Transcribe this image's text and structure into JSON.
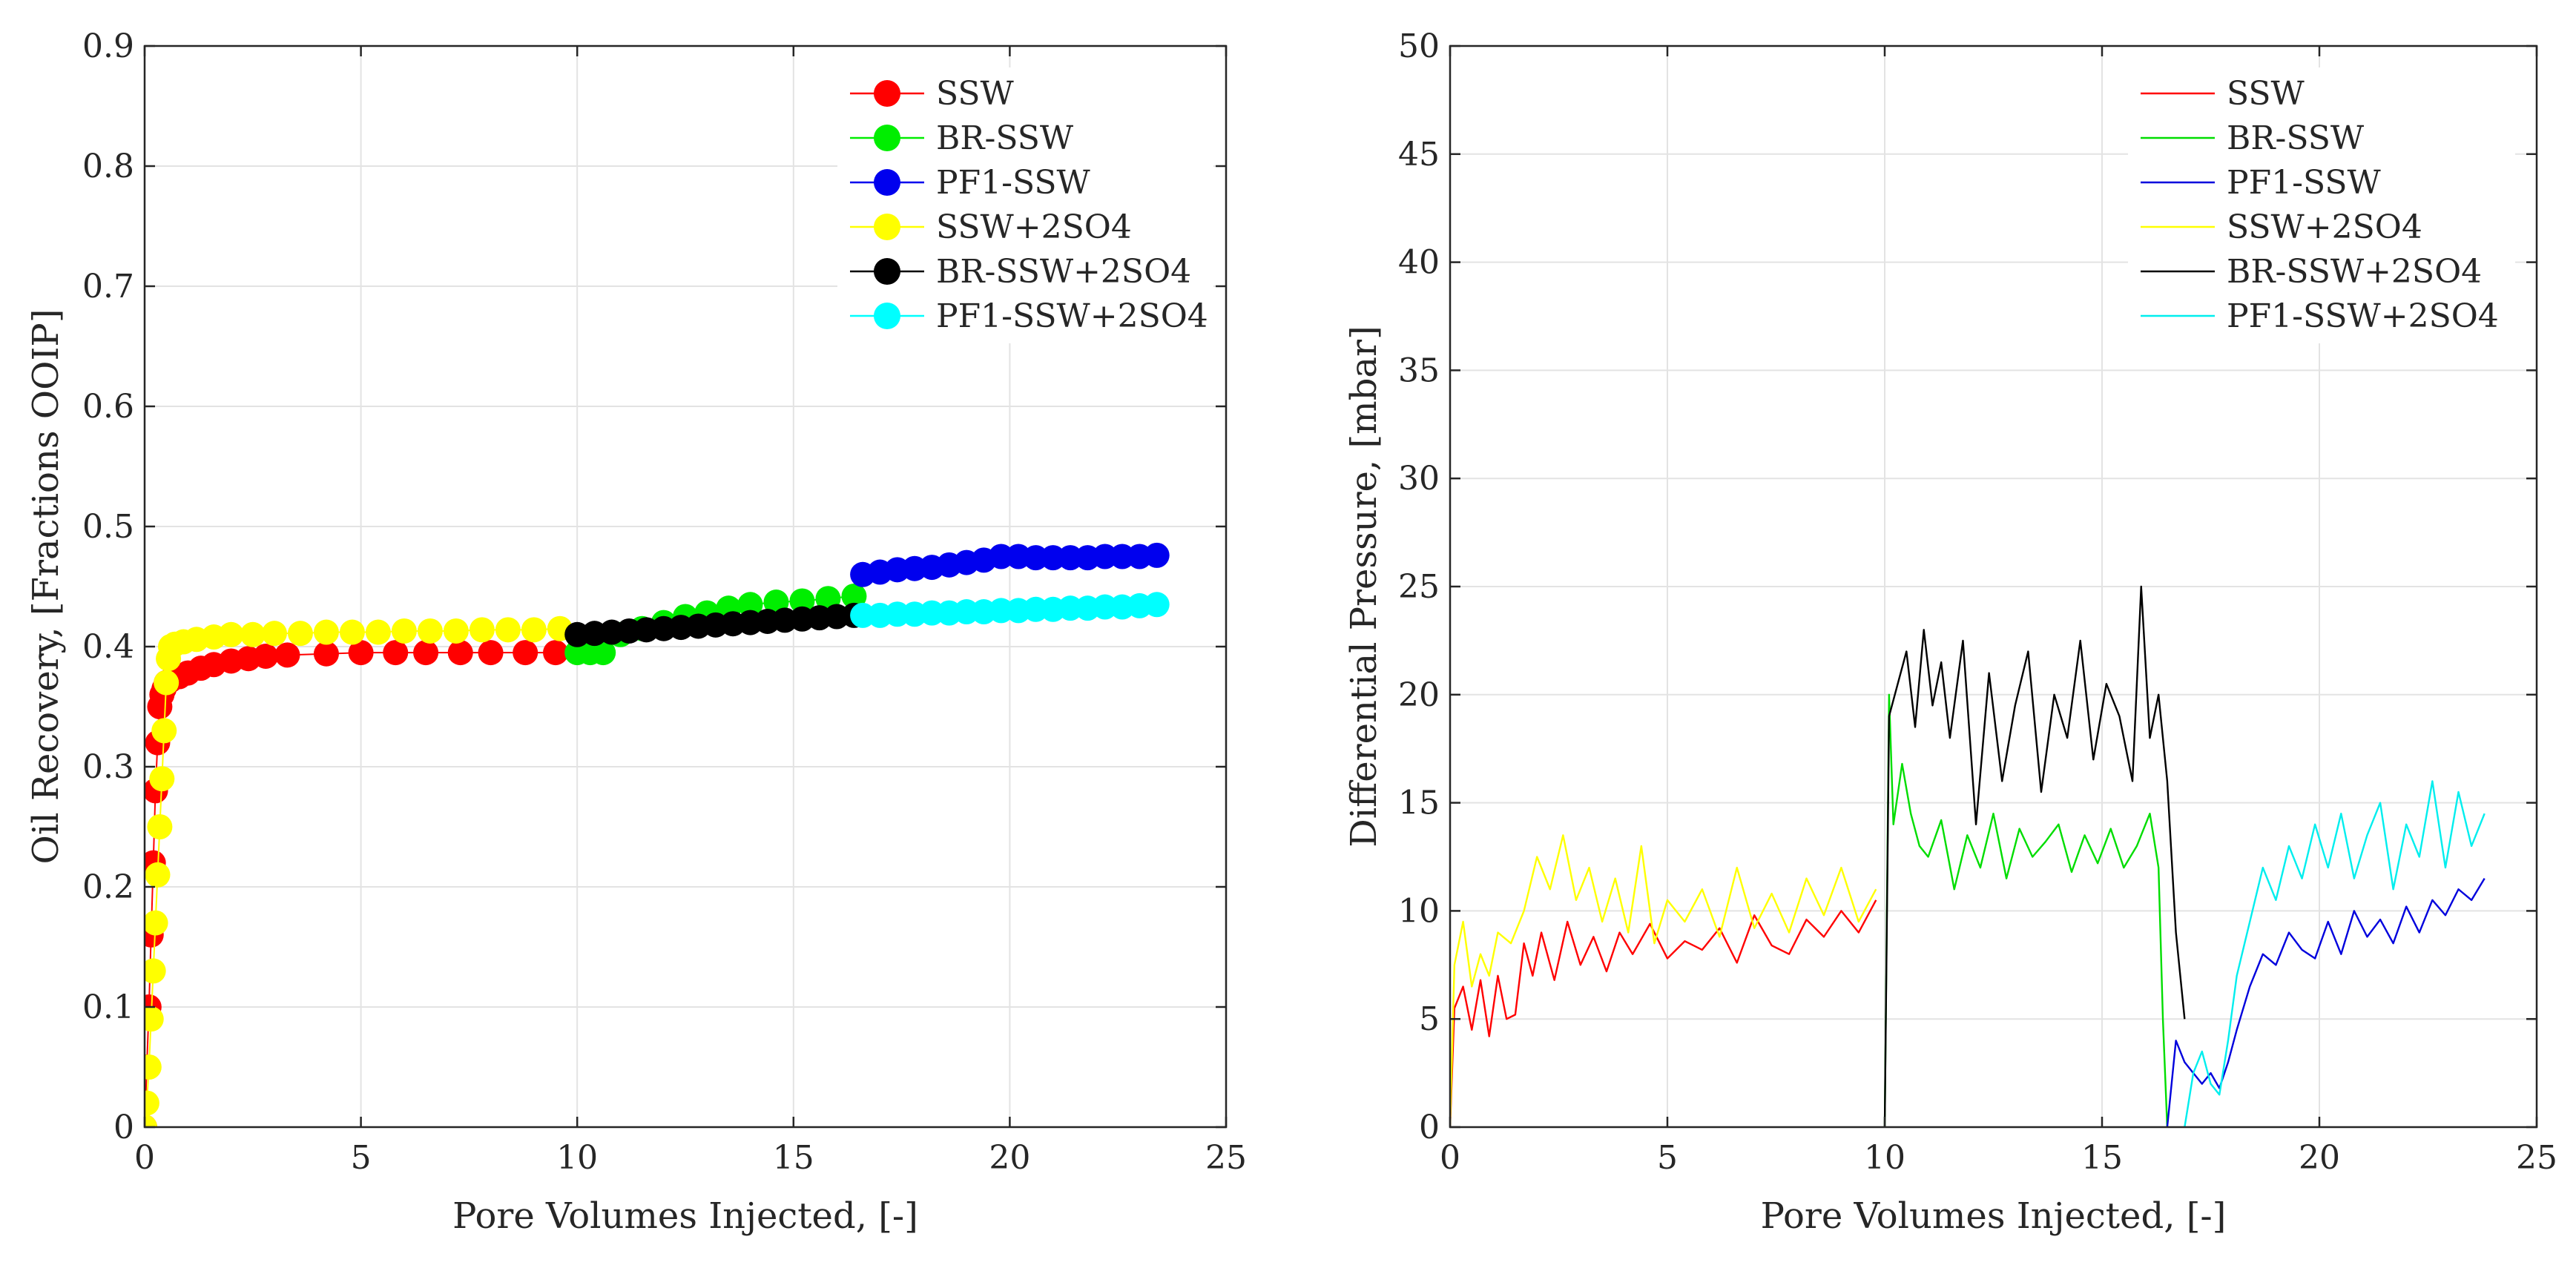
{
  "chart_data": [
    {
      "type": "scatter",
      "title": "",
      "xlabel": "Pore Volumes Injected, [-]",
      "ylabel": "Oil Recovery, [Fractions OOIP]",
      "xlim": [
        0,
        25
      ],
      "ylim": [
        0,
        0.9
      ],
      "xticks": [
        0,
        5,
        10,
        15,
        20,
        25
      ],
      "yticks": [
        0,
        0.1,
        0.2,
        0.3,
        0.4,
        0.5,
        0.6,
        0.7,
        0.8,
        0.9
      ],
      "xtick_labels": [
        "0",
        "5",
        "10",
        "15",
        "20",
        "25"
      ],
      "ytick_labels": [
        "0",
        "0.1",
        "0.2",
        "0.3",
        "0.4",
        "0.5",
        "0.6",
        "0.7",
        "0.8",
        "0.9"
      ],
      "grid": true,
      "legend_position": "top-right",
      "series": [
        {
          "name": "SSW",
          "color": "#ff0000",
          "x": [
            0.0,
            0.05,
            0.1,
            0.15,
            0.2,
            0.25,
            0.3,
            0.35,
            0.4,
            0.45,
            0.5,
            0.6,
            0.8,
            1.0,
            1.3,
            1.6,
            2.0,
            2.4,
            2.8,
            3.3,
            4.2,
            5.0,
            5.8,
            6.5,
            7.3,
            8.0,
            8.8,
            9.5
          ],
          "y": [
            0.0,
            0.05,
            0.1,
            0.16,
            0.22,
            0.28,
            0.32,
            0.35,
            0.36,
            0.365,
            0.37,
            0.372,
            0.375,
            0.378,
            0.382,
            0.385,
            0.388,
            0.39,
            0.392,
            0.393,
            0.394,
            0.395,
            0.395,
            0.395,
            0.395,
            0.395,
            0.395,
            0.395
          ]
        },
        {
          "name": "BR-SSW",
          "color": "#00ee00",
          "x": [
            10.0,
            10.3,
            10.6,
            11.0,
            11.5,
            12.0,
            12.5,
            13.0,
            13.5,
            14.0,
            14.6,
            15.2,
            15.8,
            16.4
          ],
          "y": [
            0.395,
            0.395,
            0.395,
            0.41,
            0.415,
            0.42,
            0.425,
            0.428,
            0.432,
            0.435,
            0.437,
            0.438,
            0.44,
            0.442
          ]
        },
        {
          "name": "PF1-SSW",
          "color": "#0000ee",
          "x": [
            16.6,
            17.0,
            17.4,
            17.8,
            18.2,
            18.6,
            19.0,
            19.4,
            19.8,
            20.2,
            20.6,
            21.0,
            21.4,
            21.8,
            22.2,
            22.6,
            23.0,
            23.4
          ],
          "y": [
            0.46,
            0.462,
            0.464,
            0.465,
            0.466,
            0.468,
            0.47,
            0.472,
            0.475,
            0.475,
            0.474,
            0.474,
            0.474,
            0.474,
            0.475,
            0.475,
            0.475,
            0.476
          ]
        },
        {
          "name": "SSW+2SO4",
          "color": "#ffff00",
          "x": [
            0.0,
            0.05,
            0.1,
            0.15,
            0.2,
            0.25,
            0.3,
            0.35,
            0.4,
            0.45,
            0.5,
            0.55,
            0.6,
            0.7,
            0.9,
            1.2,
            1.6,
            2.0,
            2.5,
            3.0,
            3.6,
            4.2,
            4.8,
            5.4,
            6.0,
            6.6,
            7.2,
            7.8,
            8.4,
            9.0,
            9.6
          ],
          "y": [
            0.0,
            0.02,
            0.05,
            0.09,
            0.13,
            0.17,
            0.21,
            0.25,
            0.29,
            0.33,
            0.37,
            0.39,
            0.4,
            0.402,
            0.404,
            0.406,
            0.408,
            0.41,
            0.41,
            0.411,
            0.411,
            0.412,
            0.412,
            0.412,
            0.413,
            0.413,
            0.413,
            0.414,
            0.414,
            0.414,
            0.415
          ]
        },
        {
          "name": "BR-SSW+2SO4",
          "color": "#000000",
          "x": [
            10.0,
            10.4,
            10.8,
            11.2,
            11.6,
            12.0,
            12.4,
            12.8,
            13.2,
            13.6,
            14.0,
            14.4,
            14.8,
            15.2,
            15.6,
            16.0,
            16.4
          ],
          "y": [
            0.41,
            0.411,
            0.412,
            0.413,
            0.414,
            0.415,
            0.416,
            0.417,
            0.418,
            0.419,
            0.42,
            0.421,
            0.422,
            0.423,
            0.424,
            0.425,
            0.426
          ]
        },
        {
          "name": "PF1-SSW+2SO4",
          "color": "#00ffff",
          "x": [
            16.6,
            17.0,
            17.4,
            17.8,
            18.2,
            18.6,
            19.0,
            19.4,
            19.8,
            20.2,
            20.6,
            21.0,
            21.4,
            21.8,
            22.2,
            22.6,
            23.0,
            23.4
          ],
          "y": [
            0.426,
            0.426,
            0.427,
            0.427,
            0.428,
            0.428,
            0.429,
            0.429,
            0.43,
            0.43,
            0.431,
            0.431,
            0.432,
            0.432,
            0.433,
            0.433,
            0.434,
            0.435
          ]
        }
      ]
    },
    {
      "type": "line",
      "title": "",
      "xlabel": "Pore Volumes Injected, [-]",
      "ylabel": "Differential Pressure, [mbar]",
      "xlim": [
        0,
        25
      ],
      "ylim": [
        0,
        50
      ],
      "xticks": [
        0,
        5,
        10,
        15,
        20,
        25
      ],
      "yticks": [
        0,
        5,
        10,
        15,
        20,
        25,
        30,
        35,
        40,
        45,
        50
      ],
      "xtick_labels": [
        "0",
        "5",
        "10",
        "15",
        "20",
        "25"
      ],
      "ytick_labels": [
        "0",
        "5",
        "10",
        "15",
        "20",
        "25",
        "30",
        "35",
        "40",
        "45",
        "50"
      ],
      "grid": true,
      "legend_position": "top-right",
      "series": [
        {
          "name": "SSW",
          "color": "#ff0000",
          "x": [
            0.0,
            0.1,
            0.3,
            0.5,
            0.7,
            0.9,
            1.1,
            1.3,
            1.5,
            1.7,
            1.9,
            2.1,
            2.4,
            2.7,
            3.0,
            3.3,
            3.6,
            3.9,
            4.2,
            4.6,
            5.0,
            5.4,
            5.8,
            6.2,
            6.6,
            7.0,
            7.4,
            7.8,
            8.2,
            8.6,
            9.0,
            9.4,
            9.8
          ],
          "y": [
            0.0,
            5.5,
            6.5,
            4.5,
            6.8,
            4.2,
            7.0,
            5.0,
            5.2,
            8.5,
            7.0,
            9.0,
            6.8,
            9.5,
            7.5,
            8.8,
            7.2,
            9.0,
            8.0,
            9.4,
            7.8,
            8.6,
            8.2,
            9.2,
            7.6,
            9.8,
            8.4,
            8.0,
            9.6,
            8.8,
            10.0,
            9.0,
            10.5
          ]
        },
        {
          "name": "BR-SSW",
          "color": "#00dd00",
          "x": [
            10.0,
            10.1,
            10.2,
            10.4,
            10.6,
            10.8,
            11.0,
            11.3,
            11.6,
            11.9,
            12.2,
            12.5,
            12.8,
            13.1,
            13.4,
            13.7,
            14.0,
            14.3,
            14.6,
            14.9,
            15.2,
            15.5,
            15.8,
            16.1,
            16.3,
            16.4,
            16.5
          ],
          "y": [
            0.0,
            20.0,
            14.0,
            16.8,
            14.5,
            13.0,
            12.5,
            14.2,
            11.0,
            13.5,
            12.0,
            14.5,
            11.5,
            13.8,
            12.5,
            13.2,
            14.0,
            11.8,
            13.5,
            12.2,
            13.8,
            12.0,
            13.0,
            14.5,
            12.0,
            5.0,
            0.0
          ]
        },
        {
          "name": "PF1-SSW",
          "color": "#0000dd",
          "x": [
            16.5,
            16.7,
            16.9,
            17.1,
            17.3,
            17.5,
            17.7,
            17.9,
            18.1,
            18.4,
            18.7,
            19.0,
            19.3,
            19.6,
            19.9,
            20.2,
            20.5,
            20.8,
            21.1,
            21.4,
            21.7,
            22.0,
            22.3,
            22.6,
            22.9,
            23.2,
            23.5,
            23.8
          ],
          "y": [
            0.0,
            4.0,
            3.0,
            2.5,
            2.0,
            2.5,
            1.8,
            3.0,
            4.5,
            6.5,
            8.0,
            7.5,
            9.0,
            8.2,
            7.8,
            9.5,
            8.0,
            10.0,
            8.8,
            9.6,
            8.5,
            10.2,
            9.0,
            10.5,
            9.8,
            11.0,
            10.5,
            11.5
          ]
        },
        {
          "name": "SSW+2SO4",
          "color": "#ffff00",
          "x": [
            0.0,
            0.1,
            0.3,
            0.5,
            0.7,
            0.9,
            1.1,
            1.4,
            1.7,
            2.0,
            2.3,
            2.6,
            2.9,
            3.2,
            3.5,
            3.8,
            4.1,
            4.4,
            4.7,
            5.0,
            5.4,
            5.8,
            6.2,
            6.6,
            7.0,
            7.4,
            7.8,
            8.2,
            8.6,
            9.0,
            9.4,
            9.8
          ],
          "y": [
            0.0,
            7.5,
            9.5,
            6.5,
            8.0,
            7.0,
            9.0,
            8.5,
            10.0,
            12.5,
            11.0,
            13.5,
            10.5,
            12.0,
            9.5,
            11.5,
            9.0,
            13.0,
            8.5,
            10.5,
            9.5,
            11.0,
            8.8,
            12.0,
            9.2,
            10.8,
            9.0,
            11.5,
            9.8,
            12.0,
            9.5,
            11.0
          ]
        },
        {
          "name": "BR-SSW+2SO4",
          "color": "#000000",
          "x": [
            10.0,
            10.1,
            10.3,
            10.5,
            10.7,
            10.9,
            11.1,
            11.3,
            11.5,
            11.8,
            12.1,
            12.4,
            12.7,
            13.0,
            13.3,
            13.6,
            13.9,
            14.2,
            14.5,
            14.8,
            15.1,
            15.4,
            15.7,
            15.9,
            16.1,
            16.3,
            16.5,
            16.7,
            16.9
          ],
          "y": [
            0.0,
            19.0,
            20.5,
            22.0,
            18.5,
            23.0,
            19.5,
            21.5,
            18.0,
            22.5,
            14.0,
            21.0,
            16.0,
            19.5,
            22.0,
            15.5,
            20.0,
            18.0,
            22.5,
            17.0,
            20.5,
            19.0,
            16.0,
            25.0,
            18.0,
            20.0,
            16.0,
            9.0,
            5.0
          ]
        },
        {
          "name": "PF1-SSW+2SO4",
          "color": "#00eeee",
          "x": [
            16.9,
            17.1,
            17.3,
            17.5,
            17.7,
            17.9,
            18.1,
            18.4,
            18.7,
            19.0,
            19.3,
            19.6,
            19.9,
            20.2,
            20.5,
            20.8,
            21.1,
            21.4,
            21.7,
            22.0,
            22.3,
            22.6,
            22.9,
            23.2,
            23.5,
            23.8
          ],
          "y": [
            0.0,
            2.5,
            3.5,
            2.0,
            1.5,
            4.0,
            7.0,
            9.5,
            12.0,
            10.5,
            13.0,
            11.5,
            14.0,
            12.0,
            14.5,
            11.5,
            13.5,
            15.0,
            11.0,
            14.0,
            12.5,
            16.0,
            12.0,
            15.5,
            13.0,
            14.5
          ]
        }
      ]
    }
  ]
}
